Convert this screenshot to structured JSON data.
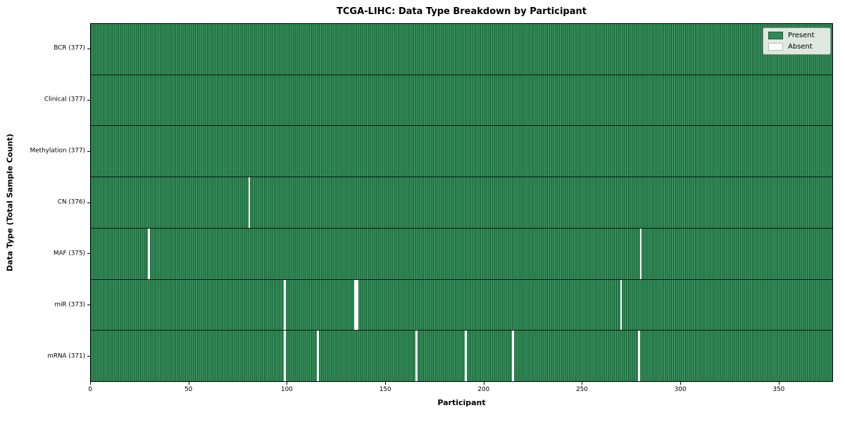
{
  "title": "TCGA-LIHC: Data Type Breakdown by Participant",
  "xlabel": "Participant",
  "ylabel": "Data Type (Total Sample Count)",
  "legend": {
    "present_label": "Present",
    "absent_label": "Absent"
  },
  "colors": {
    "present": "#2e8b57",
    "present_stripe_dark": "#1d5c38",
    "absent": "#ffffff",
    "legend_bg": "#eef1ed"
  },
  "chart_data": {
    "type": "heatmap",
    "title": "TCGA-LIHC: Data Type Breakdown by Participant",
    "xlabel": "Participant",
    "ylabel": "Data Type (Total Sample Count)",
    "legend_entries": [
      "Present",
      "Absent"
    ],
    "legend_position": "upper right",
    "grid": false,
    "n_participants": 377,
    "xlim": [
      0,
      377.6
    ],
    "x_ticks": [
      0,
      50,
      100,
      150,
      200,
      250,
      300,
      350
    ],
    "rows": [
      {
        "label": "BCR (377)",
        "data_type": "BCR",
        "total_samples": 377,
        "absent_participants": []
      },
      {
        "label": "Clinical (377)",
        "data_type": "Clinical",
        "total_samples": 377,
        "absent_participants": []
      },
      {
        "label": "Methylation (377)",
        "data_type": "Methylation",
        "total_samples": 377,
        "absent_participants": []
      },
      {
        "label": "CN (376)",
        "data_type": "CN",
        "total_samples": 376,
        "absent_participants": [
          80
        ]
      },
      {
        "label": "MAF (375)",
        "data_type": "MAF",
        "total_samples": 375,
        "absent_participants": [
          29,
          279
        ]
      },
      {
        "label": "miR (373)",
        "data_type": "miR",
        "total_samples": 373,
        "absent_participants": [
          98,
          134,
          135,
          269
        ]
      },
      {
        "label": "mRNA (371)",
        "data_type": "mRNA",
        "total_samples": 371,
        "absent_participants": [
          98,
          115,
          165,
          190,
          214,
          278
        ]
      }
    ]
  }
}
